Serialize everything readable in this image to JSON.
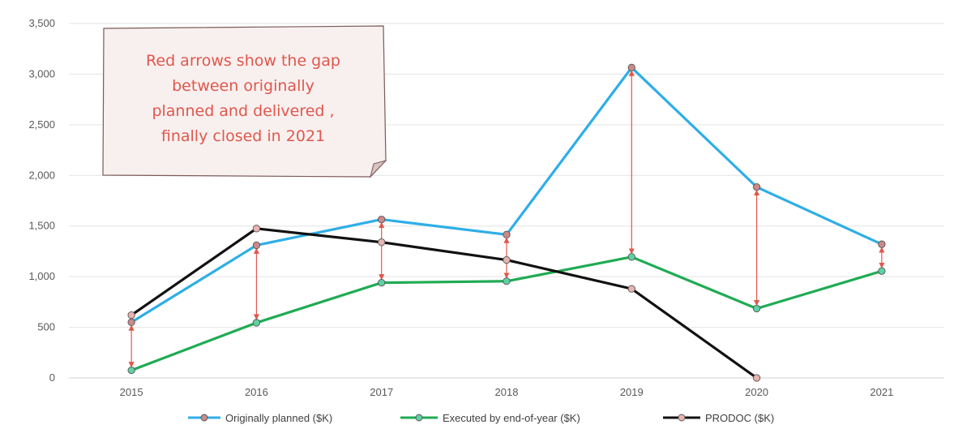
{
  "chart_data": {
    "type": "line",
    "categories": [
      "2015",
      "2016",
      "2017",
      "2018",
      "2019",
      "2020",
      "2021"
    ],
    "ylim": [
      0,
      3500
    ],
    "yticks": [
      "0",
      "500",
      "1,000",
      "1,500",
      "2,000",
      "2,500",
      "3,000",
      "3,500"
    ],
    "ytick_values": [
      0,
      500,
      1000,
      1500,
      2000,
      2500,
      3000,
      3500
    ],
    "grid": true,
    "legend_position": "bottom",
    "series": [
      {
        "name": "Originally planned ($K)",
        "color": "#2eaee6",
        "marker_color": "#c98a88",
        "values": [
          550,
          1310,
          1565,
          1415,
          3065,
          1885,
          1320
        ]
      },
      {
        "name": "Executed by end-of-year ($K)",
        "color": "#1fab53",
        "marker_color": "#5fd0a5",
        "values": [
          75,
          545,
          940,
          955,
          1195,
          685,
          1055
        ]
      },
      {
        "name": "PRODOC ($K)",
        "color": "#111111",
        "marker_color": "#e8b4b0",
        "values": [
          620,
          1475,
          1340,
          1165,
          880,
          0,
          null
        ]
      }
    ],
    "gap_arrows": {
      "color": "#e0574c",
      "categories": [
        "2015",
        "2016",
        "2017",
        "2018",
        "2019",
        "2020",
        "2021"
      ]
    },
    "annotation": {
      "lines": [
        "Red arrows show the gap",
        "between originally",
        "planned and delivered ,",
        "finally closed in 2021"
      ],
      "text_color": "#e0574c",
      "fill_color": "#f7f0ef"
    }
  }
}
